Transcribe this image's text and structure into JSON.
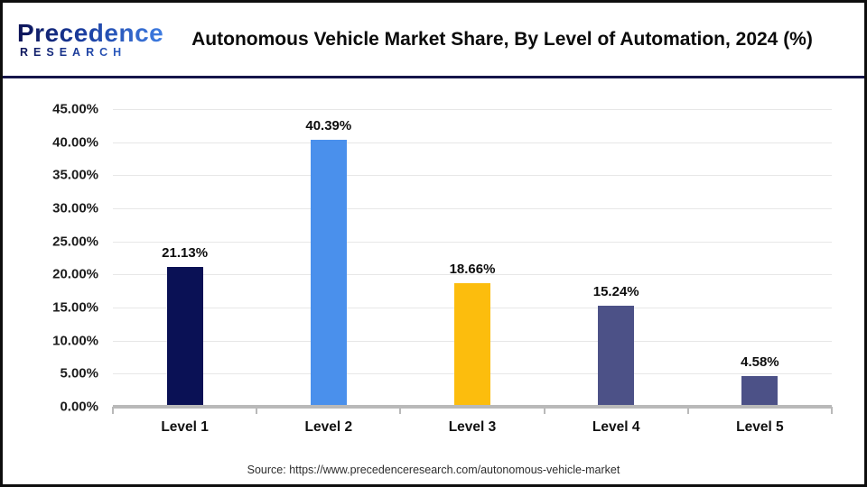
{
  "header": {
    "logo": {
      "brand": "Precedence",
      "sub": "RESEARCH"
    },
    "title": "Autonomous Vehicle Market Share, By Level of Automation, 2024 (%)"
  },
  "chart_data": {
    "type": "bar",
    "title": "Autonomous Vehicle Market Share, By Level of Automation, 2024 (%)",
    "categories": [
      "Level 1",
      "Level 2",
      "Level 3",
      "Level 4",
      "Level 5"
    ],
    "values": [
      21.13,
      40.39,
      18.66,
      15.24,
      4.58
    ],
    "value_labels": [
      "21.13%",
      "40.39%",
      "18.66%",
      "15.24%",
      "4.58%"
    ],
    "bar_colors": [
      "#0a1155",
      "#4a90ec",
      "#fcbd0d",
      "#4c5187",
      "#4c5187"
    ],
    "xlabel": "",
    "ylabel": "",
    "ylim": [
      0,
      45
    ],
    "ytick_step": 5,
    "ytick_labels": [
      "0.00%",
      "5.00%",
      "10.00%",
      "15.00%",
      "20.00%",
      "25.00%",
      "30.00%",
      "35.00%",
      "40.00%",
      "45.00%"
    ],
    "grid": "horizontal",
    "legend": "none",
    "colors": {
      "grid": "#e7e7e7",
      "axis": "#b9b9b9",
      "divider": "#15154a",
      "label_text": "#111111"
    }
  },
  "footer": {
    "source": "Source: https://www.precedenceresearch.com/autonomous-vehicle-market"
  }
}
